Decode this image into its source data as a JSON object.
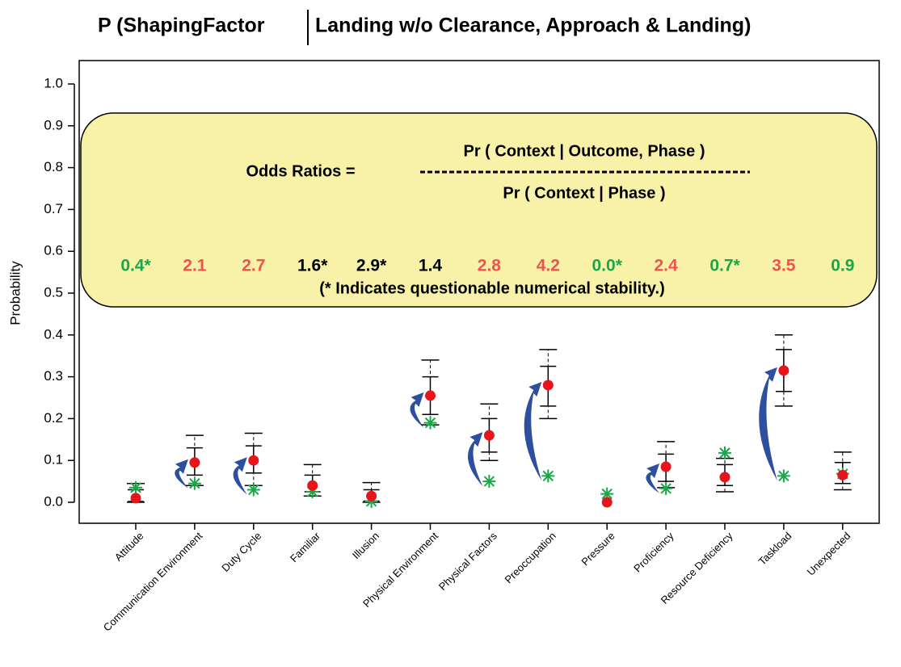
{
  "chart_data": {
    "type": "interval",
    "title": [
      "P (ShapingFactor",
      "Landing w/o Clearance, Approach & Landing)"
    ],
    "y_label": "Probability",
    "categories": [
      "Attitude",
      "Communication Environment",
      "Duty Cycle",
      "Familiar",
      "Illusion",
      "Physical Environment",
      "Physical Factors",
      "Preoccupation",
      "Pressure",
      "Proficiency",
      "Resource Deficiency",
      "Taskload",
      "Unexpected"
    ],
    "conditional": {
      "color": "#e8141c",
      "values": [
        0.01,
        0.095,
        0.1,
        0.04,
        0.015,
        0.255,
        0.16,
        0.28,
        0.0,
        0.085,
        0.06,
        0.315,
        0.065
      ]
    },
    "baseline": {
      "color": "#1aa64a",
      "values": [
        0.035,
        0.045,
        0.03,
        0.025,
        0.002,
        0.19,
        0.05,
        0.063,
        0.02,
        0.033,
        0.118,
        0.063,
        0.068
      ]
    },
    "inner_interval": [
      [
        0.002,
        0.03
      ],
      [
        0.065,
        0.13
      ],
      [
        0.07,
        0.135
      ],
      [
        0.025,
        0.065
      ],
      [
        0.003,
        0.03
      ],
      [
        0.21,
        0.3
      ],
      [
        0.12,
        0.2
      ],
      [
        0.23,
        0.325
      ],
      null,
      [
        0.05,
        0.115
      ],
      [
        0.04,
        0.09
      ],
      [
        0.265,
        0.365
      ],
      [
        0.045,
        0.095
      ]
    ],
    "outer_interval": [
      [
        0.0,
        0.045
      ],
      [
        0.04,
        0.16
      ],
      [
        0.04,
        0.165
      ],
      [
        0.015,
        0.09
      ],
      [
        0.0,
        0.047
      ],
      [
        0.185,
        0.34
      ],
      [
        0.1,
        0.235
      ],
      [
        0.2,
        0.365
      ],
      null,
      [
        0.035,
        0.145
      ],
      [
        0.025,
        0.105
      ],
      [
        0.23,
        0.4
      ],
      [
        0.03,
        0.12
      ]
    ],
    "arrow_color": "#2e4ea0",
    "odds_ratios": {
      "values": [
        0.4,
        2.1,
        2.7,
        1.6,
        2.9,
        1.4,
        2.8,
        4.2,
        0.0,
        2.4,
        0.7,
        3.5,
        0.9
      ],
      "value_labels": [
        "0.4*",
        "2.1",
        "2.7",
        "1.6*",
        "2.9*",
        "1.4",
        "2.8",
        "4.2",
        "0.0*",
        "2.4",
        "0.7*",
        "3.5",
        "0.9"
      ],
      "colors": [
        "#1aa64a",
        "#ef5350",
        "#ef5350",
        "#000000",
        "#000000",
        "#000000",
        "#ef5350",
        "#ef5350",
        "#1aa64a",
        "#ef5350",
        "#1aa64a",
        "#ef5350",
        "#1aa64a"
      ]
    },
    "formula_label": "Odds Ratios =",
    "numerator": "Pr ( Context | Outcome, Phase )",
    "denominator": "Pr ( Context | Phase )",
    "note": "(* Indicates questionable numerical stability.)",
    "box_color": "#f7f2a8",
    "ylim": [
      -0.05,
      1.06
    ],
    "yticks": [
      {
        "value": 0,
        "label": "0.0"
      },
      0.1,
      0.2,
      0.3,
      0.4,
      0.5,
      0.6,
      0.7,
      0.8,
      0.9,
      {
        "value": 1,
        "label": "1.0"
      }
    ]
  }
}
